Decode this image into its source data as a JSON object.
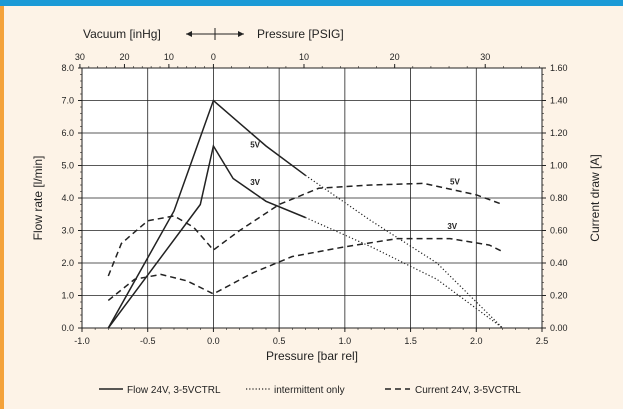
{
  "colors": {
    "top_bar": "#1b9ad6",
    "left_accent": "#f4a23a",
    "background": "#fdf3e7",
    "plot_bg": "#ffffff",
    "ink": "#222222"
  },
  "chart_data": {
    "type": "line",
    "grid": true,
    "x": {
      "label": "Pressure [bar rel]",
      "range": [
        -1.0,
        2.5
      ],
      "ticks": [
        "-1.0",
        "-0.5",
        "0.0",
        "0.5",
        "1.0",
        "1.5",
        "2.0",
        "2.5"
      ]
    },
    "y_left": {
      "label": "Flow rate [l/min]",
      "range": [
        0,
        8
      ],
      "ticks": [
        "0.0",
        "1.0",
        "2.0",
        "3.0",
        "4.0",
        "5.0",
        "6.0",
        "7.0",
        "8.0"
      ]
    },
    "y_right": {
      "label": "Current draw [A]",
      "range": [
        0,
        1.6
      ],
      "ticks": [
        "0.00",
        "0.20",
        "0.40",
        "0.60",
        "0.80",
        "1.00",
        "1.20",
        "1.40",
        "1.60"
      ]
    },
    "x_top": {
      "vacuum_label": "Vacuum [inHg]",
      "pressure_label": "Pressure [PSIG]",
      "ticks": [
        {
          "label": "30",
          "at": -1.016
        },
        {
          "label": "20",
          "at": -0.677
        },
        {
          "label": "10",
          "at": -0.339
        },
        {
          "label": "0",
          "at": 0.0
        },
        {
          "label": "10",
          "at": 0.689
        },
        {
          "label": "20",
          "at": 1.379
        },
        {
          "label": "30",
          "at": 2.068
        }
      ]
    },
    "series": [
      {
        "name": "5V",
        "kind": "flow",
        "axis": "left",
        "points": [
          [
            -0.8,
            0.0
          ],
          [
            -0.3,
            3.6
          ],
          [
            0.0,
            7.0
          ],
          [
            0.2,
            6.3
          ],
          [
            0.4,
            5.6
          ],
          [
            0.7,
            4.7
          ]
        ]
      },
      {
        "kind": "flow-intermittent",
        "axis": "left",
        "points": [
          [
            0.7,
            4.7
          ],
          [
            1.2,
            3.3
          ],
          [
            1.7,
            2.0
          ],
          [
            2.2,
            0.0
          ]
        ]
      },
      {
        "name": "3V",
        "kind": "flow",
        "axis": "left",
        "points": [
          [
            -0.8,
            0.0
          ],
          [
            -0.1,
            3.8
          ],
          [
            0.0,
            5.6
          ],
          [
            0.15,
            4.6
          ],
          [
            0.4,
            3.9
          ],
          [
            0.7,
            3.4
          ]
        ]
      },
      {
        "kind": "flow-intermittent",
        "axis": "left",
        "points": [
          [
            0.7,
            3.4
          ],
          [
            1.2,
            2.5
          ],
          [
            1.7,
            1.5
          ],
          [
            2.2,
            0.0
          ]
        ]
      },
      {
        "name": "5V",
        "kind": "current",
        "axis": "right",
        "points": [
          [
            -0.8,
            0.32
          ],
          [
            -0.7,
            0.52
          ],
          [
            -0.5,
            0.66
          ],
          [
            -0.3,
            0.69
          ],
          [
            -0.15,
            0.62
          ],
          [
            0.0,
            0.48
          ],
          [
            0.2,
            0.6
          ],
          [
            0.5,
            0.76
          ],
          [
            0.8,
            0.86
          ],
          [
            1.2,
            0.88
          ],
          [
            1.6,
            0.89
          ],
          [
            2.0,
            0.82
          ],
          [
            2.2,
            0.76
          ]
        ]
      },
      {
        "name": "3V",
        "kind": "current",
        "axis": "right",
        "points": [
          [
            -0.8,
            0.17
          ],
          [
            -0.6,
            0.3
          ],
          [
            -0.4,
            0.33
          ],
          [
            -0.2,
            0.29
          ],
          [
            0.0,
            0.21
          ],
          [
            0.3,
            0.34
          ],
          [
            0.6,
            0.44
          ],
          [
            1.0,
            0.5
          ],
          [
            1.4,
            0.55
          ],
          [
            1.8,
            0.55
          ],
          [
            2.1,
            0.51
          ],
          [
            2.2,
            0.47
          ]
        ]
      }
    ],
    "annotations": [
      {
        "text": "5V",
        "x": 0.28,
        "y": 5.55
      },
      {
        "text": "3V",
        "x": 0.28,
        "y": 4.4
      },
      {
        "text": "5V",
        "x": 1.8,
        "y": 4.42
      },
      {
        "text": "3V",
        "x": 1.78,
        "y": 3.05
      }
    ],
    "legend": {
      "placement": "bottom",
      "entries": [
        {
          "style": "solid",
          "label": "Flow 24V, 3-5VCTRL"
        },
        {
          "style": "dotted",
          "label": "intermittent only"
        },
        {
          "style": "dashed",
          "label": "Current 24V, 3-5VCTRL"
        }
      ]
    }
  }
}
